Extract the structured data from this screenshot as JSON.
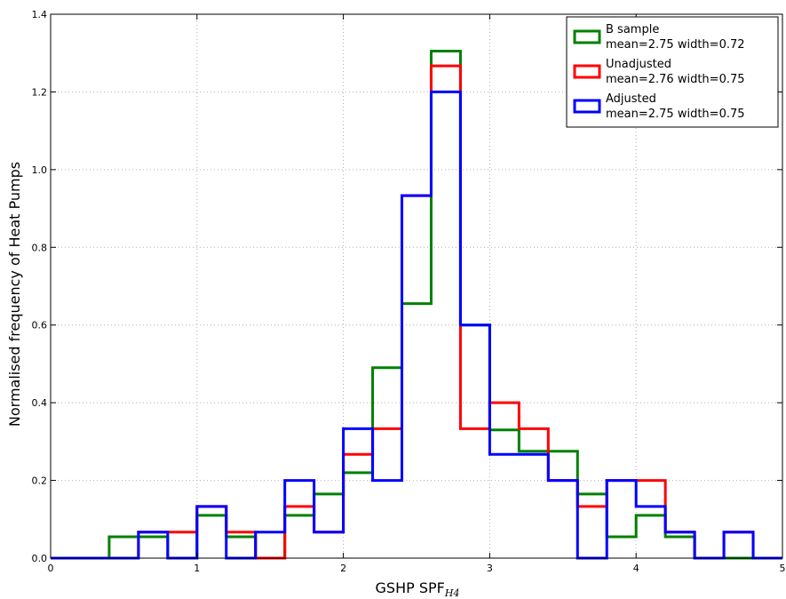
{
  "chart_data": {
    "type": "histogram",
    "xlabel_main": "GSHP SPF",
    "xlabel_subscript": "H4",
    "ylabel": "Normalised frequency of Heat Pumps",
    "xlim": [
      0,
      5
    ],
    "ylim": [
      0,
      1.4
    ],
    "x_ticks": [
      0,
      1,
      2,
      3,
      4,
      5
    ],
    "x_tick_labels": [
      "0",
      "1",
      "2",
      "3",
      "4",
      "5"
    ],
    "y_ticks": [
      0.0,
      0.2,
      0.4,
      0.6,
      0.8,
      1.0,
      1.2,
      1.4
    ],
    "y_tick_labels": [
      "0.0",
      "0.2",
      "0.4",
      "0.6",
      "0.8",
      "1.0",
      "1.2",
      "1.4"
    ],
    "grid": true,
    "legend_position": "top-right",
    "bin_edges": [
      0.0,
      0.2,
      0.4,
      0.6,
      0.8,
      1.0,
      1.2,
      1.4,
      1.6,
      1.8,
      2.0,
      2.2,
      2.4,
      2.6,
      2.8,
      3.0,
      3.2,
      3.4,
      3.6,
      3.8,
      4.0,
      4.2,
      4.4,
      4.6,
      4.8,
      5.0
    ],
    "series": [
      {
        "name": "B sample",
        "stats": "mean=2.75 width=0.72",
        "color": "#008000",
        "values": [
          0,
          0,
          0.055,
          0.055,
          0,
          0.11,
          0.055,
          0,
          0.11,
          0.165,
          0.22,
          0.49,
          0.655,
          1.305,
          0.6,
          0.33,
          0.275,
          0.275,
          0.165,
          0.055,
          0.11,
          0.055,
          0,
          0,
          0
        ]
      },
      {
        "name": "Unadjusted",
        "stats": "mean=2.76 width=0.75",
        "color": "#ff0000",
        "values": [
          0,
          0,
          0,
          0.067,
          0.067,
          0.133,
          0.067,
          0,
          0.133,
          0.067,
          0.267,
          0.333,
          0.933,
          1.267,
          0.333,
          0.4,
          0.333,
          0.2,
          0.133,
          0.2,
          0.2,
          0.067,
          0,
          0.067,
          0
        ]
      },
      {
        "name": "Adjusted",
        "stats": "mean=2.75 width=0.75",
        "color": "#0000ff",
        "values": [
          0,
          0,
          0,
          0.067,
          0,
          0.133,
          0,
          0.067,
          0.2,
          0.067,
          0.333,
          0.2,
          0.933,
          1.2,
          0.6,
          0.267,
          0.267,
          0.2,
          0,
          0.2,
          0.133,
          0.067,
          0,
          0.067,
          0
        ]
      }
    ]
  }
}
